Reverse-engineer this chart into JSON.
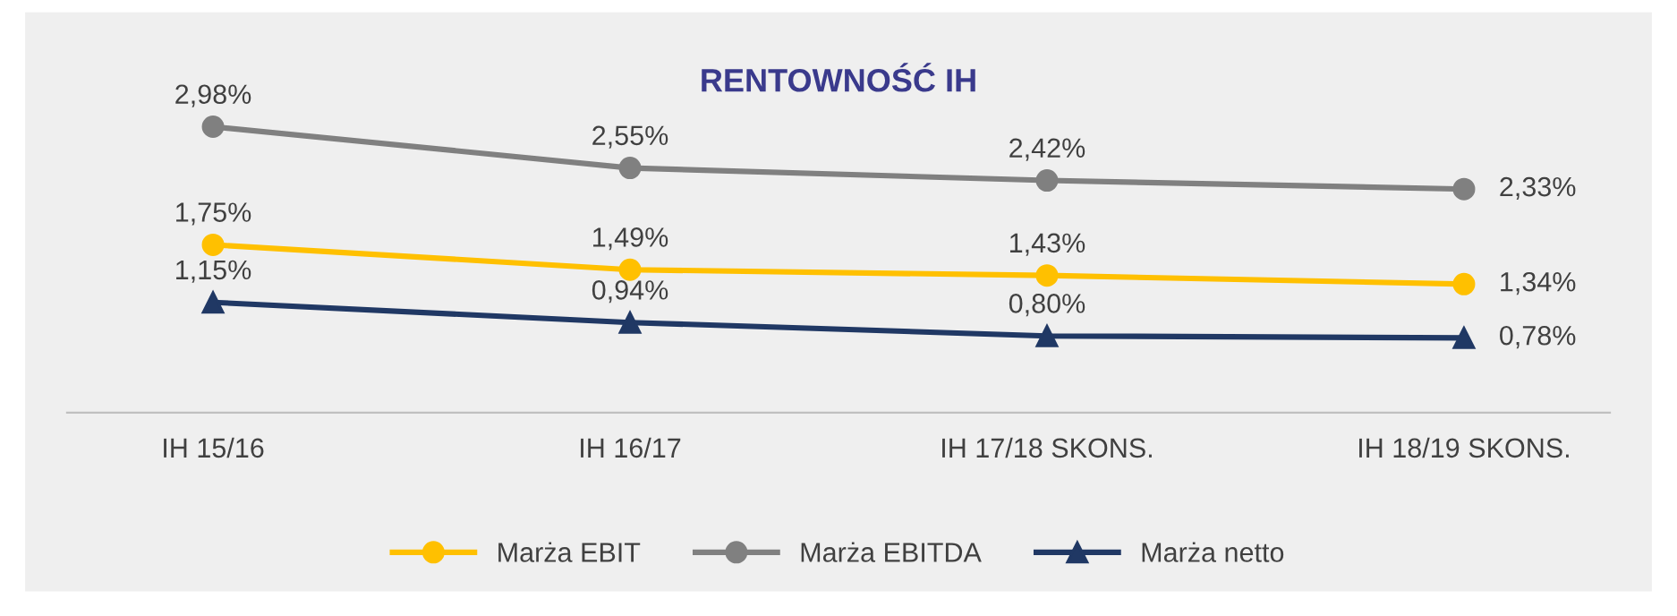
{
  "chart_data": {
    "type": "line",
    "title": "RENTOWNOŚĆ IH",
    "categories": [
      "IH 15/16",
      "IH 16/17",
      "IH 17/18 SKONS.",
      "IH 18/19 SKONS."
    ],
    "series": [
      {
        "name": "Marża EBIT",
        "color": "#ffc000",
        "marker": "circle",
        "values": [
          1.75,
          1.49,
          1.43,
          1.34
        ],
        "value_labels": [
          "1,75%",
          "1,49%",
          "1,43%",
          "1,34%"
        ]
      },
      {
        "name": "Marża EBITDA",
        "color": "#808080",
        "marker": "circle",
        "values": [
          2.98,
          2.55,
          2.42,
          2.33
        ],
        "value_labels": [
          "2,98%",
          "2,55%",
          "2,42%",
          "2,33%"
        ]
      },
      {
        "name": "Marża netto",
        "color": "#203864",
        "marker": "triangle",
        "values": [
          1.15,
          0.94,
          0.8,
          0.78
        ],
        "value_labels": [
          "1,15%",
          "0,94%",
          "0,80%",
          "0,78%"
        ]
      }
    ],
    "legend": "bottom",
    "grid": false,
    "line_style": "solid"
  }
}
